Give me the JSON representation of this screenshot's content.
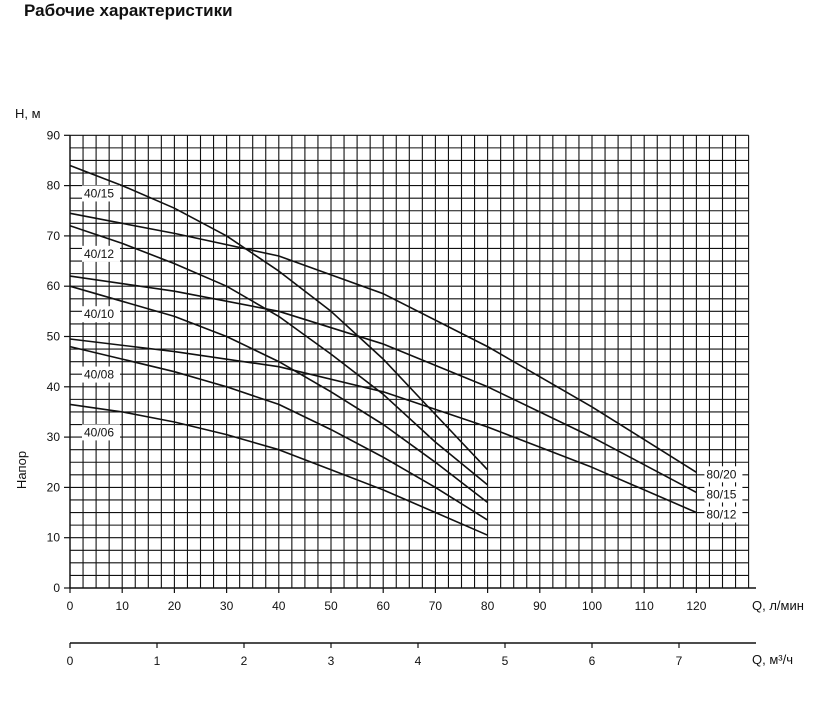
{
  "page": {
    "title": "Рабочие характеристики"
  },
  "chart_data": {
    "type": "line",
    "title": "",
    "ylabel": "Напор",
    "y_unit_label": "H, м",
    "xlabel": "Q, л/мин",
    "x2label": "Q, м³/ч",
    "xlim": [
      0,
      130
    ],
    "ylim": [
      0,
      90
    ],
    "x2lim": [
      0,
      7.8
    ],
    "x_ticks": [
      0,
      10,
      20,
      30,
      40,
      50,
      60,
      70,
      80,
      90,
      100,
      110,
      120
    ],
    "y_ticks": [
      0,
      10,
      20,
      30,
      40,
      50,
      60,
      70,
      80,
      90
    ],
    "x2_ticks": [
      0,
      1,
      2,
      3,
      4,
      5,
      6,
      7
    ],
    "grid": true,
    "series": [
      {
        "name": "40/15",
        "x": [
          0,
          10,
          20,
          30,
          40,
          50,
          60,
          70,
          80
        ],
        "y": [
          84,
          80,
          75.5,
          70,
          63,
          55,
          45.5,
          34.5,
          23.5
        ]
      },
      {
        "name": "40/12",
        "x": [
          0,
          10,
          20,
          30,
          40,
          50,
          60,
          70,
          80
        ],
        "y": [
          72,
          68.5,
          64.5,
          60,
          54,
          46.5,
          38.5,
          29,
          20.5
        ]
      },
      {
        "name": "40/10",
        "x": [
          0,
          10,
          20,
          30,
          40,
          50,
          60,
          70,
          80
        ],
        "y": [
          60,
          57,
          54,
          50,
          45,
          39,
          32.5,
          25,
          17
        ]
      },
      {
        "name": "40/08",
        "x": [
          0,
          10,
          20,
          30,
          40,
          50,
          60,
          70,
          80
        ],
        "y": [
          48,
          45.5,
          43,
          40,
          36.5,
          31.5,
          26,
          20,
          13.5
        ]
      },
      {
        "name": "40/06",
        "x": [
          0,
          10,
          20,
          30,
          40,
          50,
          60,
          70,
          80
        ],
        "y": [
          36.5,
          35,
          33,
          30.5,
          27.5,
          23.5,
          19.5,
          15,
          10.5
        ]
      },
      {
        "name": "80/20",
        "x": [
          0,
          20,
          40,
          60,
          80,
          100,
          120
        ],
        "y": [
          74.5,
          70.5,
          66,
          58.5,
          48,
          36,
          23
        ]
      },
      {
        "name": "80/15",
        "x": [
          0,
          20,
          40,
          60,
          80,
          100,
          120
        ],
        "y": [
          62,
          59,
          55,
          48.5,
          40,
          30,
          19
        ]
      },
      {
        "name": "80/12",
        "x": [
          0,
          20,
          40,
          60,
          80,
          100,
          120
        ],
        "y": [
          49.5,
          47,
          44,
          39,
          32,
          24,
          15
        ]
      }
    ]
  }
}
